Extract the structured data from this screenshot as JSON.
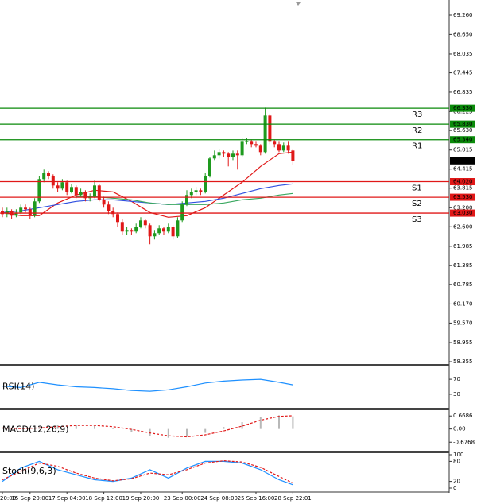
{
  "chart_data": [
    {
      "type": "candlestick",
      "ohlc": [
        [
          63.1,
          63.2,
          62.9,
          63.0
        ],
        [
          63.0,
          63.2,
          62.9,
          63.1
        ],
        [
          63.1,
          63.15,
          62.85,
          62.95
        ],
        [
          62.95,
          63.15,
          62.9,
          63.05
        ],
        [
          63.05,
          63.3,
          63.0,
          63.2
        ],
        [
          63.2,
          63.3,
          63.05,
          63.15
        ],
        [
          63.15,
          63.2,
          62.85,
          62.95
        ],
        [
          62.95,
          63.5,
          62.9,
          63.4
        ],
        [
          63.4,
          64.2,
          63.35,
          64.1
        ],
        [
          64.1,
          64.4,
          64.0,
          64.3
        ],
        [
          64.3,
          64.35,
          64.1,
          64.2
        ],
        [
          64.2,
          64.25,
          63.8,
          63.9
        ],
        [
          63.9,
          64.0,
          63.7,
          63.8
        ],
        [
          63.8,
          64.1,
          63.75,
          64.0
        ],
        [
          64.0,
          64.05,
          63.6,
          63.7
        ],
        [
          63.7,
          63.95,
          63.65,
          63.85
        ],
        [
          63.85,
          63.9,
          63.5,
          63.6
        ],
        [
          63.6,
          63.8,
          63.55,
          63.7
        ],
        [
          63.7,
          63.75,
          63.4,
          63.5
        ],
        [
          63.5,
          63.65,
          63.4,
          63.55
        ],
        [
          63.55,
          64.05,
          63.5,
          63.9
        ],
        [
          63.9,
          63.95,
          63.4,
          63.45
        ],
        [
          63.45,
          63.55,
          63.2,
          63.3
        ],
        [
          63.3,
          63.4,
          63.0,
          63.1
        ],
        [
          63.1,
          63.2,
          62.9,
          63.0
        ],
        [
          63.0,
          63.05,
          62.6,
          62.75
        ],
        [
          62.75,
          62.85,
          62.35,
          62.45
        ],
        [
          62.45,
          62.6,
          62.35,
          62.5
        ],
        [
          62.5,
          62.55,
          62.35,
          62.45
        ],
        [
          62.45,
          62.7,
          62.4,
          62.6
        ],
        [
          62.6,
          62.9,
          62.55,
          62.8
        ],
        [
          62.8,
          62.85,
          62.55,
          62.65
        ],
        [
          62.65,
          62.7,
          62.05,
          62.3
        ],
        [
          62.3,
          62.5,
          62.2,
          62.4
        ],
        [
          62.4,
          62.65,
          62.35,
          62.55
        ],
        [
          62.55,
          62.6,
          62.35,
          62.45
        ],
        [
          62.45,
          62.7,
          62.4,
          62.6
        ],
        [
          62.6,
          62.65,
          62.2,
          62.3
        ],
        [
          62.3,
          62.9,
          62.25,
          62.8
        ],
        [
          62.8,
          63.4,
          62.75,
          63.3
        ],
        [
          63.3,
          63.75,
          63.25,
          63.6
        ],
        [
          63.6,
          63.8,
          63.5,
          63.7
        ],
        [
          63.7,
          63.85,
          63.6,
          63.75
        ],
        [
          63.75,
          63.8,
          63.6,
          63.7
        ],
        [
          63.7,
          64.3,
          63.65,
          64.2
        ],
        [
          64.2,
          64.8,
          64.15,
          64.75
        ],
        [
          64.75,
          65.0,
          64.7,
          64.85
        ],
        [
          64.85,
          65.05,
          64.75,
          64.95
        ],
        [
          64.95,
          65.0,
          64.8,
          64.9
        ],
        [
          64.9,
          64.95,
          64.5,
          64.8
        ],
        [
          64.8,
          65.0,
          64.7,
          64.9
        ],
        [
          64.9,
          65.0,
          64.4,
          64.85
        ],
        [
          64.85,
          65.4,
          64.8,
          65.3
        ],
        [
          65.3,
          65.4,
          65.2,
          65.3
        ],
        [
          65.3,
          65.35,
          65.1,
          65.2
        ],
        [
          65.2,
          65.3,
          65.1,
          65.15
        ],
        [
          65.15,
          65.2,
          64.85,
          64.95
        ],
        [
          64.95,
          66.35,
          64.9,
          66.1
        ],
        [
          66.1,
          66.15,
          65.2,
          65.3
        ],
        [
          65.3,
          65.35,
          65.1,
          65.2
        ],
        [
          65.2,
          65.3,
          64.95,
          65.0
        ],
        [
          65.0,
          65.25,
          64.95,
          65.15
        ],
        [
          65.15,
          65.3,
          64.9,
          65.0
        ],
        [
          65.0,
          65.05,
          64.55,
          64.675
        ]
      ],
      "colors": {
        "up": "#1e9a1e",
        "down": "#e01818"
      },
      "ylim": [
        58.28,
        69.61
      ],
      "yticks": [
        {
          "value": 69.26,
          "label": "69.260"
        },
        {
          "value": 68.65,
          "label": "68.650"
        },
        68.035,
        67.445,
        66.835,
        66.225,
        {
          "value": 65.63,
          "label": "65.630"
        },
        65.015,
        64.415,
        63.815,
        {
          "value": 63.2,
          "label": "63.200"
        },
        {
          "value": 62.6,
          "label": "62.600"
        },
        61.985,
        61.385,
        60.785,
        {
          "value": 60.17,
          "label": "60.170"
        },
        {
          "value": 59.57,
          "label": "59.570"
        },
        58.955,
        58.355
      ],
      "time_labels": {
        "x": [
          0,
          6,
          14,
          22,
          30,
          39,
          47,
          55,
          63
        ],
        "labels": [
          "20:00",
          "15 Sep 20:00",
          "17 Sep 04:00",
          "18 Sep 12:00",
          "19 Sep 20:00",
          "23 Sep 00:00",
          "24 Sep 08:00",
          "25 Sep 16:00",
          "28 Sep 22:01"
        ]
      },
      "moving_averages": [
        {
          "color": "#e01818",
          "x": [
            0,
            4,
            8,
            12,
            16,
            20,
            24,
            28,
            32,
            36,
            40,
            44,
            48,
            52,
            56,
            60,
            63
          ],
          "values": [
            63.05,
            62.95,
            62.95,
            63.35,
            63.6,
            63.75,
            63.7,
            63.4,
            63.05,
            62.9,
            62.95,
            63.2,
            63.6,
            64.0,
            64.5,
            64.9,
            64.95
          ]
        },
        {
          "color": "#3050e0",
          "x": [
            0,
            4,
            8,
            12,
            16,
            20,
            24,
            28,
            32,
            36,
            40,
            44,
            48,
            52,
            56,
            60,
            63
          ],
          "values": [
            63.05,
            63.1,
            63.2,
            63.3,
            63.4,
            63.45,
            63.45,
            63.4,
            63.35,
            63.3,
            63.35,
            63.4,
            63.5,
            63.65,
            63.8,
            63.9,
            63.95
          ]
        },
        {
          "color": "#3aa860",
          "x": [
            0,
            4,
            8,
            12,
            16,
            20,
            24,
            28,
            32,
            36,
            40,
            44,
            48,
            52,
            56,
            60,
            63
          ],
          "values": [
            null,
            null,
            null,
            null,
            63.55,
            63.55,
            63.5,
            63.45,
            63.35,
            63.3,
            63.3,
            63.3,
            63.35,
            63.45,
            63.5,
            63.6,
            63.65
          ]
        }
      ],
      "levels": {
        "names": [
          "R3",
          "R2",
          "R1",
          "S1",
          "S2",
          "S3"
        ],
        "values": [
          66.33,
          65.83,
          65.34,
          64.02,
          63.53,
          63.03
        ],
        "value_labels": [
          "66.330",
          "65.830",
          "65.340",
          "64.020",
          "63.530",
          "63.030"
        ],
        "colors": [
          "#0a8a0a",
          "#0a8a0a",
          "#0a8a0a",
          "#e01818",
          "#e01818",
          "#e01818"
        ]
      }
    },
    {
      "type": "line",
      "title": "RSI(14)",
      "ylim": [
        0,
        100
      ],
      "yticks": [
        70,
        30
      ],
      "x": [
        0,
        4,
        8,
        12,
        16,
        20,
        24,
        28,
        32,
        36,
        40,
        44,
        48,
        52,
        56,
        60,
        63
      ],
      "series": [
        {
          "color": "#1e90ff",
          "values": [
            52,
            48,
            62,
            55,
            50,
            48,
            45,
            40,
            38,
            42,
            50,
            60,
            65,
            68,
            70,
            62,
            55
          ]
        }
      ]
    },
    {
      "type": "macd",
      "title": "MACD(12,26,9)",
      "ylim": [
        -0.87,
        0.8
      ],
      "yticks": [
        0.6686,
        {
          "value": 0,
          "label": "0.00"
        },
        -0.6768
      ],
      "x": [
        0,
        4,
        8,
        12,
        16,
        20,
        24,
        28,
        32,
        36,
        40,
        44,
        48,
        52,
        56,
        60,
        63
      ],
      "histogram": {
        "color": "#b8b8b8",
        "values": [
          0.05,
          0.0,
          0.1,
          0.2,
          0.2,
          0.15,
          0.05,
          -0.15,
          -0.35,
          -0.45,
          -0.4,
          -0.2,
          0.1,
          0.35,
          0.6,
          0.7,
          0.65
        ]
      },
      "series": [
        {
          "color": "#e01818",
          "dashed": true,
          "values": [
            0.05,
            0.02,
            0.05,
            0.12,
            0.18,
            0.18,
            0.12,
            -0.02,
            -0.2,
            -0.35,
            -0.4,
            -0.3,
            -0.1,
            0.15,
            0.45,
            0.65,
            0.68
          ]
        }
      ]
    },
    {
      "type": "line",
      "title": "Stoch(9,6,3)",
      "ylim": [
        0,
        100
      ],
      "yticks": [
        100,
        80,
        20,
        0
      ],
      "x": [
        0,
        4,
        8,
        12,
        16,
        20,
        24,
        28,
        32,
        36,
        40,
        44,
        48,
        52,
        56,
        60,
        63
      ],
      "series": [
        {
          "color": "#1e90ff",
          "values": [
            20,
            60,
            80,
            55,
            40,
            25,
            20,
            30,
            55,
            30,
            60,
            80,
            80,
            75,
            55,
            25,
            10
          ]
        },
        {
          "color": "#e01818",
          "dashed": true,
          "values": [
            25,
            50,
            75,
            65,
            45,
            30,
            22,
            28,
            45,
            40,
            55,
            75,
            82,
            78,
            62,
            35,
            15
          ]
        }
      ]
    }
  ]
}
